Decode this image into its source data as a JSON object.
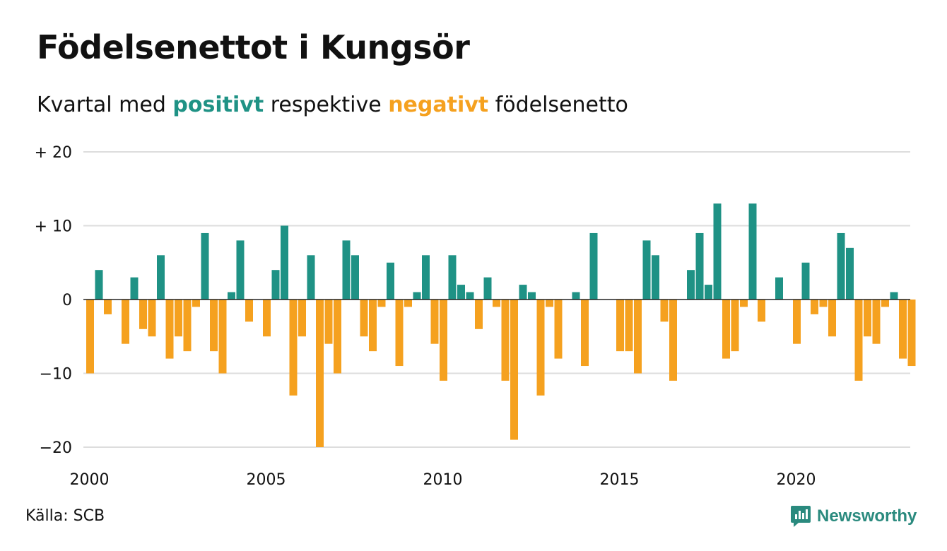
{
  "title": "Födelsenettot i Kungsör",
  "subtitle": {
    "prefix": "Kvartal med ",
    "positive_word": "positivt",
    "middle": " respektive ",
    "negative_word": "negativt",
    "suffix": " födelsenetto"
  },
  "source": "Källa: SCB",
  "logo_text": "Newsworthy",
  "colors": {
    "positive": "#1f9285",
    "negative": "#f5a11f",
    "grid": "#dddddd",
    "zero_line": "#222222"
  },
  "chart_data": {
    "type": "bar",
    "x_start": "2000 Q1",
    "x_tick_labels": [
      "2000",
      "2005",
      "2010",
      "2015",
      "2020"
    ],
    "y_tick_labels": [
      "+ 20",
      "+ 10",
      "0",
      "−10",
      "−20"
    ],
    "y_ticks": [
      20,
      10,
      0,
      -10,
      -20
    ],
    "ylim": [
      -20,
      20
    ],
    "grid": true,
    "values": [
      -10,
      4,
      -2,
      0,
      -6,
      3,
      -4,
      -5,
      6,
      -8,
      -5,
      -7,
      -1,
      9,
      -7,
      -10,
      1,
      8,
      -3,
      0,
      -5,
      4,
      10,
      -13,
      -5,
      6,
      -20,
      -6,
      -10,
      8,
      6,
      -5,
      -7,
      -1,
      5,
      -9,
      -1,
      1,
      6,
      -6,
      -11,
      6,
      2,
      1,
      -4,
      3,
      -1,
      -11,
      -19,
      2,
      1,
      -13,
      -1,
      -8,
      0,
      1,
      -9,
      9,
      0,
      0,
      -7,
      -7,
      -10,
      8,
      6,
      -3,
      -11,
      0,
      4,
      9,
      2,
      13,
      -8,
      -7,
      -1,
      13,
      -3,
      0,
      3,
      0,
      -6,
      5,
      -2,
      -1,
      -5,
      9,
      7,
      -11,
      -5,
      -6,
      -1,
      1,
      -8,
      -9
    ]
  }
}
